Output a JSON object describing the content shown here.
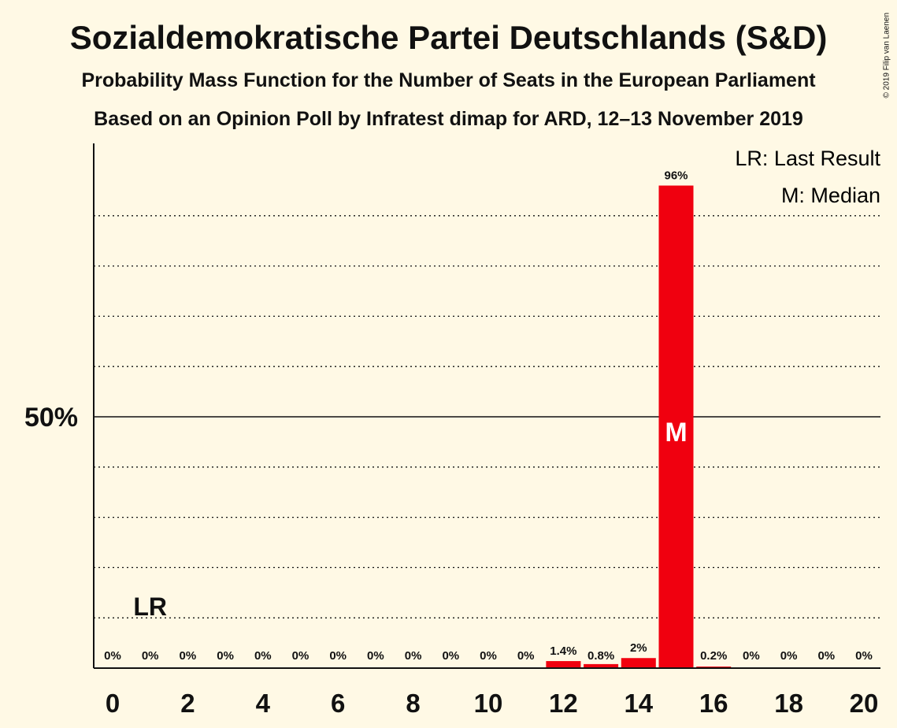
{
  "header": {
    "title": "Sozialdemokratische Partei Deutschlands (S&D)",
    "subtitle1": "Probability Mass Function for the Number of Seats in the European Parliament",
    "subtitle2": "Based on an Opinion Poll by Infratest dimap for ARD, 12–13 November 2019",
    "copyright": "© 2019 Filip van Laenen"
  },
  "legend": {
    "lr": "LR: Last Result",
    "m": "M: Median"
  },
  "colors": {
    "bar": "#F0000F",
    "background": "#FFF9E5",
    "axis": "#111111"
  },
  "chart_data": {
    "type": "bar",
    "categories": [
      0,
      1,
      2,
      3,
      4,
      5,
      6,
      7,
      8,
      9,
      10,
      11,
      12,
      13,
      14,
      15,
      16,
      17,
      18,
      19,
      20
    ],
    "values": [
      0,
      0,
      0,
      0,
      0,
      0,
      0,
      0,
      0,
      0,
      0,
      0,
      1.4,
      0.8,
      2,
      96,
      0.2,
      0,
      0,
      0,
      0
    ],
    "value_labels": [
      "0%",
      "0%",
      "0%",
      "0%",
      "0%",
      "0%",
      "0%",
      "0%",
      "0%",
      "0%",
      "0%",
      "0%",
      "1.4%",
      "0.8%",
      "2%",
      "96%",
      "0.2%",
      "0%",
      "0%",
      "0%",
      "0%"
    ],
    "x_tick_labels": [
      "0",
      "2",
      "4",
      "6",
      "8",
      "10",
      "12",
      "14",
      "16",
      "18",
      "20"
    ],
    "x_ticks": [
      0,
      2,
      4,
      6,
      8,
      10,
      12,
      14,
      16,
      18,
      20
    ],
    "y_tick_label": "50%",
    "y_tick_value": 50,
    "ylim": [
      0,
      105
    ],
    "grid": true,
    "gridlines": [
      10,
      20,
      30,
      40,
      60,
      70,
      80,
      90
    ],
    "last_result": {
      "seat": 1,
      "label": "LR"
    },
    "median": {
      "seat": 15,
      "label": "M"
    },
    "legend_position": "top-right"
  }
}
